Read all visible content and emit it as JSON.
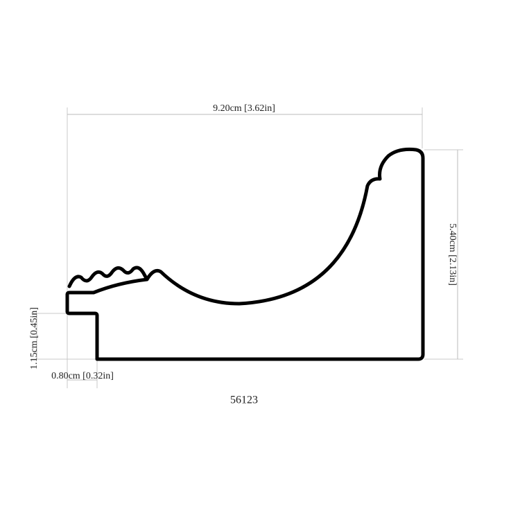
{
  "dimensions": {
    "width": "9.20cm [3.62in]",
    "height": "5.40cm [2.13in]",
    "rabbet_height": "1.15cm [0.45in]",
    "rabbet_width": "0.80cm [0.32in]"
  },
  "model": "56123"
}
